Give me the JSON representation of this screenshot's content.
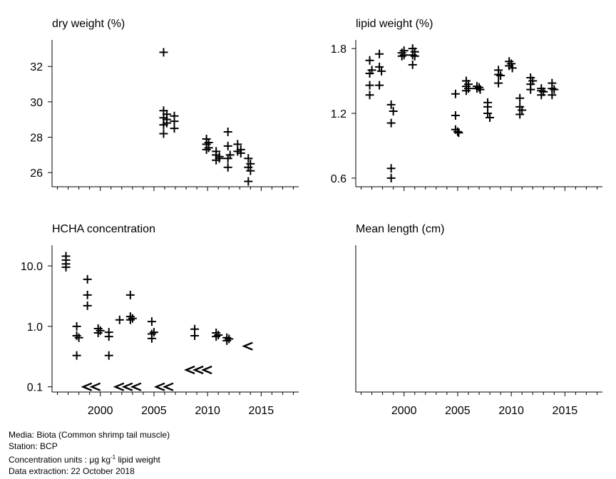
{
  "chart_data": [
    {
      "type": "scatter",
      "title": "dry weight (%)",
      "xlim": [
        1995.5,
        2018.5
      ],
      "ylim": [
        25.2,
        33.5
      ],
      "yticks": [
        26,
        28,
        30,
        32
      ],
      "ytick_labels": [
        "26",
        "28",
        "30",
        "32"
      ],
      "show_x_labels": false,
      "points": [
        [
          2005.9,
          32.8
        ],
        [
          2005.9,
          29.5
        ],
        [
          2005.9,
          29.1
        ],
        [
          2005.9,
          28.7
        ],
        [
          2005.9,
          28.2
        ],
        [
          2006.2,
          29.3
        ],
        [
          2006.2,
          29.0
        ],
        [
          2006.2,
          28.8
        ],
        [
          2006.9,
          29.2
        ],
        [
          2006.9,
          28.9
        ],
        [
          2006.9,
          28.5
        ],
        [
          2009.9,
          27.9
        ],
        [
          2009.9,
          27.6
        ],
        [
          2009.9,
          27.3
        ],
        [
          2010.1,
          27.7
        ],
        [
          2010.1,
          27.4
        ],
        [
          2010.8,
          27.2
        ],
        [
          2010.8,
          27.0
        ],
        [
          2010.8,
          26.7
        ],
        [
          2011.1,
          26.9
        ],
        [
          2011.1,
          26.8
        ],
        [
          2011.9,
          28.3
        ],
        [
          2011.9,
          27.5
        ],
        [
          2011.9,
          26.8
        ],
        [
          2011.9,
          26.3
        ],
        [
          2012.1,
          27.0
        ],
        [
          2012.8,
          27.6
        ],
        [
          2012.8,
          27.2
        ],
        [
          2013.1,
          27.3
        ],
        [
          2013.1,
          27.1
        ],
        [
          2013.8,
          26.8
        ],
        [
          2013.8,
          26.3
        ],
        [
          2013.8,
          25.5
        ],
        [
          2014.0,
          26.5
        ],
        [
          2014.0,
          26.1
        ]
      ]
    },
    {
      "type": "scatter",
      "title": "lipid weight (%)",
      "xlim": [
        1995.5,
        2018.5
      ],
      "ylim": [
        0.52,
        1.88
      ],
      "yticks": [
        0.6,
        1.2,
        1.8
      ],
      "ytick_labels": [
        "0.6",
        "1.2",
        "1.8"
      ],
      "show_x_labels": false,
      "points": [
        [
          1996.8,
          1.69
        ],
        [
          1996.8,
          1.57
        ],
        [
          1996.8,
          1.46
        ],
        [
          1996.8,
          1.37
        ],
        [
          1997.0,
          1.6
        ],
        [
          1997.7,
          1.75
        ],
        [
          1997.7,
          1.63
        ],
        [
          1997.7,
          1.46
        ],
        [
          1997.9,
          1.59
        ],
        [
          1998.8,
          1.28
        ],
        [
          1998.8,
          1.11
        ],
        [
          1998.8,
          0.69
        ],
        [
          1998.8,
          0.6
        ],
        [
          1999.0,
          1.22
        ],
        [
          1999.8,
          1.76
        ],
        [
          1999.8,
          1.73
        ],
        [
          2000.0,
          1.78
        ],
        [
          2000.0,
          1.74
        ],
        [
          2000.8,
          1.8
        ],
        [
          2000.8,
          1.74
        ],
        [
          2000.8,
          1.65
        ],
        [
          2001.0,
          1.77
        ],
        [
          2001.0,
          1.73
        ],
        [
          2004.8,
          1.38
        ],
        [
          2004.8,
          1.18
        ],
        [
          2004.8,
          1.05
        ],
        [
          2005.0,
          1.03
        ],
        [
          2005.1,
          1.02
        ],
        [
          2005.8,
          1.5
        ],
        [
          2005.8,
          1.45
        ],
        [
          2005.8,
          1.41
        ],
        [
          2006.0,
          1.47
        ],
        [
          2006.0,
          1.43
        ],
        [
          2006.8,
          1.45
        ],
        [
          2006.8,
          1.43
        ],
        [
          2007.0,
          1.44
        ],
        [
          2007.1,
          1.42
        ],
        [
          2007.8,
          1.3
        ],
        [
          2007.8,
          1.26
        ],
        [
          2007.8,
          1.2
        ],
        [
          2008.0,
          1.16
        ],
        [
          2008.8,
          1.6
        ],
        [
          2008.8,
          1.56
        ],
        [
          2008.8,
          1.48
        ],
        [
          2009.0,
          1.55
        ],
        [
          2009.8,
          1.68
        ],
        [
          2009.8,
          1.64
        ],
        [
          2010.0,
          1.66
        ],
        [
          2010.1,
          1.62
        ],
        [
          2010.8,
          1.34
        ],
        [
          2010.8,
          1.26
        ],
        [
          2010.8,
          1.19
        ],
        [
          2011.0,
          1.23
        ],
        [
          2011.8,
          1.53
        ],
        [
          2011.8,
          1.47
        ],
        [
          2011.8,
          1.42
        ],
        [
          2012.0,
          1.5
        ],
        [
          2012.8,
          1.43
        ],
        [
          2012.8,
          1.41
        ],
        [
          2012.8,
          1.37
        ],
        [
          2013.0,
          1.4
        ],
        [
          2013.8,
          1.48
        ],
        [
          2013.8,
          1.43
        ],
        [
          2013.8,
          1.37
        ],
        [
          2014.0,
          1.42
        ]
      ]
    },
    {
      "type": "scatter",
      "title": "HCHA concentration",
      "xlim": [
        1995.5,
        2018.5
      ],
      "ylim_log": [
        0.082,
        22
      ],
      "log_scale": true,
      "yticks": [
        0.1,
        1.0,
        10.0
      ],
      "ytick_labels": [
        "0.1",
        "1.0",
        "10.0"
      ],
      "show_x_labels": true,
      "xticks": [
        2000,
        2005,
        2010,
        2015
      ],
      "xtick_labels": [
        "2000",
        "2005",
        "2010",
        "2015"
      ],
      "points": [
        [
          1996.8,
          14.5
        ],
        [
          1996.8,
          12.5
        ],
        [
          1996.8,
          10.8
        ],
        [
          1996.8,
          9.5
        ],
        [
          1997.8,
          1.0
        ],
        [
          1997.8,
          0.7
        ],
        [
          1997.8,
          0.33
        ],
        [
          1998.0,
          0.65
        ],
        [
          1998.8,
          6.0
        ],
        [
          1998.8,
          3.3
        ],
        [
          1998.8,
          2.2
        ],
        [
          1999.8,
          0.92
        ],
        [
          1999.8,
          0.78
        ],
        [
          2000.0,
          0.85
        ],
        [
          2000.8,
          0.8
        ],
        [
          2000.8,
          0.68
        ],
        [
          2000.8,
          0.33
        ],
        [
          2001.8,
          1.28
        ],
        [
          2002.8,
          3.3
        ],
        [
          2002.8,
          1.45
        ],
        [
          2002.8,
          1.28
        ],
        [
          2003.0,
          1.35
        ],
        [
          2004.8,
          1.2
        ],
        [
          2004.8,
          0.75
        ],
        [
          2004.8,
          0.63
        ],
        [
          2005.0,
          0.8
        ],
        [
          2008.8,
          0.9
        ],
        [
          2008.8,
          0.7
        ],
        [
          2010.8,
          0.78
        ],
        [
          2010.8,
          0.68
        ],
        [
          2011.0,
          0.72
        ],
        [
          2011.8,
          0.65
        ],
        [
          2011.8,
          0.58
        ],
        [
          2012.0,
          0.62
        ]
      ],
      "less_than": [
        [
          1998.8,
          0.1
        ],
        [
          1999.6,
          0.1
        ],
        [
          2001.8,
          0.1
        ],
        [
          2002.6,
          0.1
        ],
        [
          2003.4,
          0.1
        ],
        [
          2005.6,
          0.1
        ],
        [
          2006.4,
          0.1
        ],
        [
          2008.4,
          0.19
        ],
        [
          2009.2,
          0.19
        ],
        [
          2010.0,
          0.19
        ],
        [
          2013.8,
          0.47
        ]
      ]
    },
    {
      "type": "scatter",
      "title": "Mean  length (cm)",
      "xlim": [
        1995.5,
        2018.5
      ],
      "show_x_labels": true,
      "xticks": [
        2000,
        2005,
        2010,
        2015
      ],
      "xtick_labels": [
        "2000",
        "2005",
        "2010",
        "2015"
      ],
      "points": []
    }
  ],
  "footer": {
    "media": "Media: Biota (Common shrimp tail muscle)",
    "station": "Station: BCP",
    "units_prefix": "Concentration units : ",
    "units_mu": "μ",
    "units_g_kg": "g kg",
    "units_sup": "-1",
    "units_suffix": " lipid weight",
    "extraction": "Data extraction: 22 October 2018"
  }
}
